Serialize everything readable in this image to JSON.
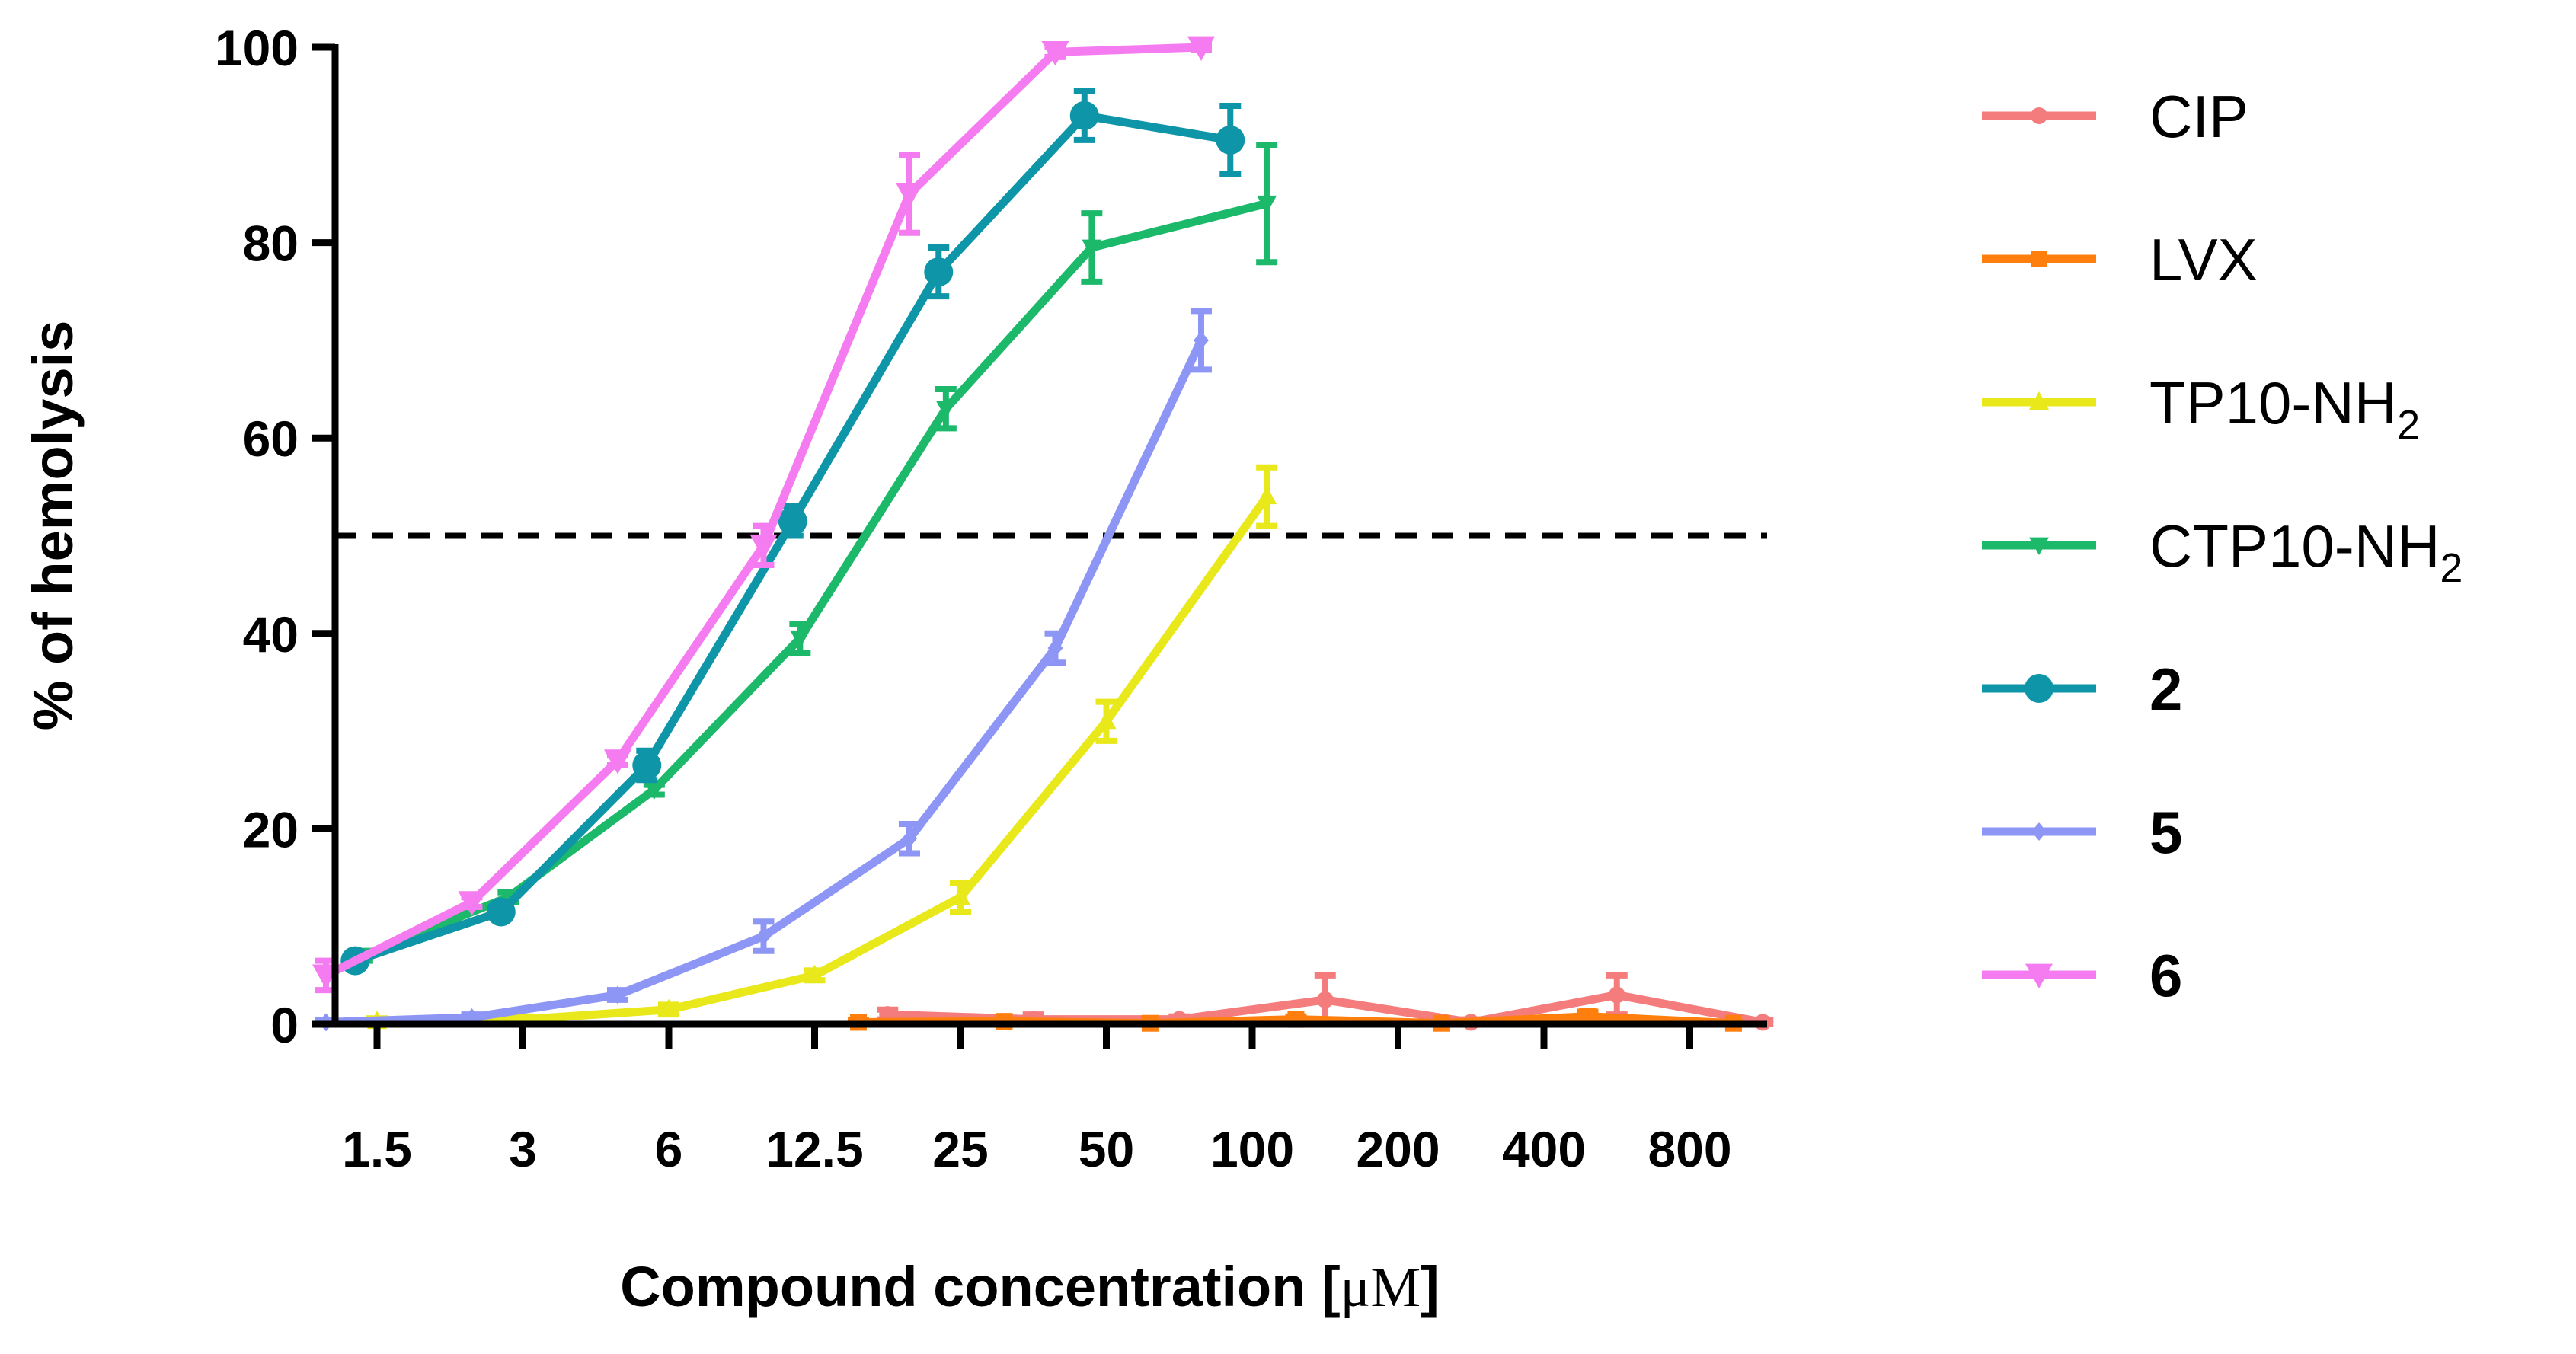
{
  "chart_data": {
    "type": "line",
    "title": "",
    "ylabel": "% of hemolysis",
    "xlabel_prefix": "Compound concentration [",
    "xlabel_unit": "μM",
    "xlabel_suffix": "]",
    "ylim": [
      0,
      100
    ],
    "yticks": [
      0,
      20,
      40,
      60,
      80,
      100
    ],
    "categories": [
      "1.5",
      "3",
      "6",
      "12.5",
      "25",
      "50",
      "100",
      "200",
      "400",
      "800"
    ],
    "reference_line": {
      "y": 50,
      "style": "dashed"
    },
    "legend_position": "right",
    "series": [
      {
        "name": "CIP",
        "sub": "",
        "bold": false,
        "color": "#F47C7C",
        "marker": "circle",
        "x": [
          3.5,
          4.5,
          5.5,
          6.5,
          7.5,
          8.5,
          9.5
        ],
        "y": [
          1,
          0.5,
          0.5,
          2.5,
          0.2,
          3,
          0.2
        ],
        "err": [
          0.5,
          0.5,
          0.3,
          2.5,
          0.3,
          2,
          0.2
        ]
      },
      {
        "name": "LVX",
        "sub": "",
        "bold": false,
        "color": "#FF7F0E",
        "marker": "square",
        "x": [
          3.3,
          4.3,
          5.3,
          6.3,
          7.3,
          8.3,
          9.3
        ],
        "y": [
          0.2,
          0.3,
          0.1,
          0.5,
          0.1,
          0.8,
          0.1
        ],
        "err": [
          0.2,
          0.2,
          0.1,
          0.3,
          0.1,
          0.5,
          0.1
        ]
      },
      {
        "name": "TP10-NH",
        "sub": "2",
        "bold": false,
        "color": "#E8E81A",
        "marker": "triangle-up",
        "x": [
          0,
          1,
          2,
          3,
          4,
          5,
          6.1
        ],
        "y": [
          0.3,
          0.5,
          1.5,
          5,
          13,
          31,
          54
        ],
        "err": [
          0.3,
          0.3,
          0.5,
          0.5,
          1.5,
          2,
          3
        ]
      },
      {
        "name": "CTP10-NH",
        "sub": "2",
        "bold": false,
        "color": "#1DB96B",
        "marker": "triangle-down",
        "x": [
          -0.1,
          0.9,
          1.9,
          2.9,
          3.9,
          4.9,
          6.1
        ],
        "y": [
          7,
          13,
          24,
          39.5,
          63,
          79.5,
          84
        ],
        "err": [
          0.5,
          0.5,
          0.5,
          1.5,
          2,
          3.5,
          6
        ]
      },
      {
        "name": "2",
        "sub": "",
        "bold": true,
        "color": "#0E95A8",
        "marker": "circle-large",
        "x": [
          -0.15,
          0.85,
          1.85,
          2.85,
          3.85,
          4.85,
          5.85
        ],
        "y": [
          6.5,
          11.5,
          26.5,
          51.5,
          77,
          93,
          90.5
        ],
        "err": [
          0.5,
          0.5,
          1.5,
          1.5,
          2.5,
          2.5,
          3.5
        ]
      },
      {
        "name": "5",
        "sub": "",
        "bold": true,
        "color": "#8E96F5",
        "marker": "diamond",
        "x": [
          -0.35,
          0.65,
          1.65,
          2.65,
          3.65,
          4.65,
          5.65
        ],
        "y": [
          0.2,
          0.7,
          3,
          9,
          19,
          38.5,
          70
        ],
        "err": [
          0.2,
          0.3,
          0.5,
          1.5,
          1.5,
          1.5,
          3
        ]
      },
      {
        "name": "6",
        "sub": "",
        "bold": true,
        "color": "#F57CF0",
        "marker": "triangle-down-large",
        "x": [
          -0.35,
          0.65,
          1.65,
          2.65,
          3.65,
          4.65,
          5.65
        ],
        "y": [
          5,
          12.5,
          27,
          49,
          85,
          99.5,
          100
        ],
        "err": [
          1.5,
          0.5,
          0.5,
          2,
          4,
          0.5,
          0.3
        ]
      }
    ]
  }
}
